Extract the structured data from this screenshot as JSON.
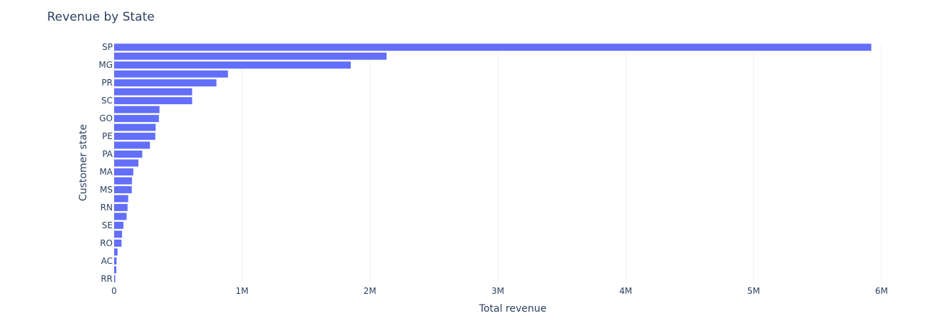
{
  "chart_data": {
    "type": "bar",
    "orientation": "horizontal",
    "title": "Revenue by State",
    "xlabel": "Total revenue",
    "ylabel": "Customer state",
    "xlim": [
      0,
      6200000
    ],
    "x_ticks": [
      0,
      1000000,
      2000000,
      3000000,
      4000000,
      5000000,
      6000000
    ],
    "x_tick_labels": [
      "0",
      "1M",
      "2M",
      "3M",
      "4M",
      "5M",
      "6M"
    ],
    "categories": [
      "SP",
      "",
      "MG",
      "",
      "PR",
      "",
      "SC",
      "",
      "GO",
      "",
      "PE",
      "",
      "PA",
      "",
      "MA",
      "",
      "MS",
      "",
      "RN",
      "",
      "SE",
      "",
      "RO",
      "",
      "AC",
      "",
      "RR"
    ],
    "values": [
      5920000,
      2130000,
      1850000,
      890000,
      800000,
      610000,
      610000,
      355000,
      350000,
      325000,
      322000,
      280000,
      220000,
      190000,
      150000,
      140000,
      138000,
      110000,
      105000,
      98000,
      73000,
      62000,
      58000,
      27000,
      19000,
      17000,
      9000
    ],
    "grid": "vertical",
    "legend": "none"
  },
  "colors": {
    "bar": "#636efa",
    "text": "#2a3f5f",
    "grid": "#ebf0f8"
  }
}
